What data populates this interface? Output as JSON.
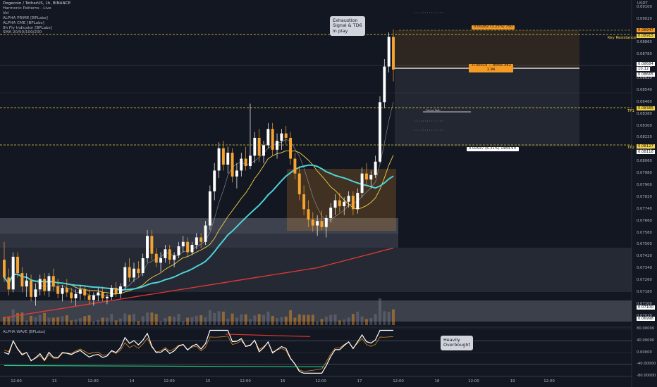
{
  "colors": {
    "background": "#131722",
    "bull": "#ffffff",
    "bear": "#f5a431",
    "teal": "#4fd2d8",
    "yellow": "#f6d245",
    "red": "#e53935",
    "orange": "#f59a23",
    "zone": "#9aa0ab",
    "dashed": "#e0d33a"
  },
  "legend": {
    "title": "Dogecoin / TetherUS, 1h, BINANCE",
    "lines": [
      "Harmonic Patterns - Live",
      "Vol",
      "ALPHA PRIME [BPLabs]",
      "ALPHA CME [BPLabs]",
      "9h Fly Indicator [BPLabs]",
      "SMA 20/50/100/200"
    ]
  },
  "annotations": {
    "exhaustion": "Exhaustion\nSignal & TD6\nin play",
    "overbought": "Heavily\nOverbought",
    "key_resistance": "Key Resistance",
    "tp1": "TP1",
    "tp2": "TP2",
    "target_box": "0.00282 (3.25%) 750",
    "entry_box": "-0.00019 − 8M56.482\n1.94",
    "stop_box": "0.00547 (6.31%) 1484.9×",
    "mid_label": "Future Path"
  },
  "price_axis": {
    "unit": "USDT",
    "ticks": [
      "0.09100",
      "0.09060",
      "0.09020",
      "0.08980",
      "0.08940",
      "0.08900",
      "0.08860",
      "0.08820",
      "0.08780",
      "0.08740",
      "0.08700",
      "0.08660",
      "0.08620",
      "0.08580",
      "0.08540",
      "0.08500",
      "0.08460",
      "0.08420",
      "0.08380",
      "0.08340",
      "0.08300",
      "0.08260",
      "0.08220",
      "0.08180",
      "0.08140",
      "0.08100",
      "0.08060",
      "0.08020",
      "0.07980",
      "0.07940",
      "0.07900",
      "0.07860",
      "0.07820",
      "0.07780",
      "0.07740",
      "0.07700",
      "0.07660",
      "0.07620",
      "0.07580",
      "0.07540",
      "0.07500",
      "0.07460",
      "0.07420",
      "0.07380",
      "0.07340",
      "0.07300",
      "0.07260",
      "0.07220",
      "0.07180",
      "0.07140",
      "0.07100",
      "0.07060",
      "0.07020",
      "0.06980"
    ],
    "badges": [
      {
        "text": "0.08947",
        "color": "#f59a23"
      },
      {
        "text": "0.08915",
        "color": "#f6d245"
      },
      {
        "text": "0.08684",
        "color": "#ffffff"
      },
      {
        "text": "10:12",
        "color": "#ffffff"
      },
      {
        "text": "0.08665",
        "color": "#ffffff"
      },
      {
        "text": "0.08385",
        "color": "#f6d245"
      },
      {
        "text": "0.08127",
        "color": "#f6d245"
      },
      {
        "text": "0.08118",
        "color": "#ffffff"
      },
      {
        "text": "0.07100",
        "color": "#ffffff"
      },
      {
        "text": "0.06998",
        "color": "#ffffff"
      }
    ]
  },
  "time_axis": [
    "12:00",
    "13",
    "12:00",
    "14",
    "12:00",
    "15",
    "12:00",
    "16",
    "12:00",
    "17",
    "12:00",
    "18",
    "12:00",
    "19",
    "12:00"
  ],
  "oscillator": {
    "name": "ALPHA WAVE [BPLabs]",
    "ticks": [
      "80.00000",
      "40.00000",
      "0.00000",
      "-40.00000",
      "-80.00000"
    ]
  },
  "chart_data": {
    "type": "candlestick",
    "title": "Dogecoin / TetherUS, 1h, BINANCE",
    "ylim": [
      0.0696,
      0.0911
    ],
    "levels": {
      "key_resistance": 0.08915,
      "tp1": 0.08385,
      "tp2": 0.08127,
      "current": 0.08684
    },
    "candles": [
      [
        0.074,
        0.0752,
        0.0725,
        0.0728
      ],
      [
        0.0728,
        0.0734,
        0.0716,
        0.072
      ],
      [
        0.072,
        0.0745,
        0.0718,
        0.0742
      ],
      [
        0.0742,
        0.0745,
        0.0728,
        0.0731
      ],
      [
        0.0731,
        0.0735,
        0.0718,
        0.0722
      ],
      [
        0.0722,
        0.0731,
        0.0715,
        0.0726
      ],
      [
        0.0726,
        0.073,
        0.0712,
        0.0715
      ],
      [
        0.0715,
        0.0724,
        0.0709,
        0.072
      ],
      [
        0.072,
        0.073,
        0.0716,
        0.0727
      ],
      [
        0.0727,
        0.0731,
        0.0716,
        0.0719
      ],
      [
        0.0719,
        0.0731,
        0.0715,
        0.0729
      ],
      [
        0.0729,
        0.0734,
        0.0719,
        0.0722
      ],
      [
        0.0722,
        0.0727,
        0.0714,
        0.0717
      ],
      [
        0.0717,
        0.0723,
        0.0712,
        0.0721
      ],
      [
        0.0721,
        0.0727,
        0.0715,
        0.0718
      ],
      [
        0.0718,
        0.0721,
        0.0711,
        0.0714
      ],
      [
        0.0714,
        0.072,
        0.0709,
        0.0717
      ],
      [
        0.0717,
        0.0723,
        0.0713,
        0.072
      ],
      [
        0.072,
        0.0722,
        0.0713,
        0.0716
      ],
      [
        0.0716,
        0.072,
        0.071,
        0.0713
      ],
      [
        0.0713,
        0.0718,
        0.0709,
        0.0716
      ],
      [
        0.0716,
        0.0721,
        0.0712,
        0.0718
      ],
      [
        0.0718,
        0.0722,
        0.0712,
        0.0714
      ],
      [
        0.0714,
        0.0717,
        0.071,
        0.0715
      ],
      [
        0.0715,
        0.0723,
        0.0713,
        0.0721
      ],
      [
        0.0721,
        0.0725,
        0.0715,
        0.0717
      ],
      [
        0.0717,
        0.0724,
        0.0714,
        0.0722
      ],
      [
        0.0722,
        0.0738,
        0.072,
        0.0735
      ],
      [
        0.0735,
        0.0741,
        0.0725,
        0.0728
      ],
      [
        0.0728,
        0.0738,
        0.0725,
        0.0734
      ],
      [
        0.0734,
        0.0739,
        0.0728,
        0.0731
      ],
      [
        0.0731,
        0.0744,
        0.0729,
        0.0741
      ],
      [
        0.0741,
        0.076,
        0.0738,
        0.0756
      ],
      [
        0.0756,
        0.076,
        0.074,
        0.0744
      ],
      [
        0.0744,
        0.0748,
        0.0735,
        0.0738
      ],
      [
        0.0738,
        0.0745,
        0.0732,
        0.0741
      ],
      [
        0.0741,
        0.075,
        0.0738,
        0.0747
      ],
      [
        0.0747,
        0.075,
        0.0737,
        0.074
      ],
      [
        0.074,
        0.0745,
        0.0735,
        0.0743
      ],
      [
        0.0743,
        0.0752,
        0.0741,
        0.0749
      ],
      [
        0.0749,
        0.0756,
        0.0745,
        0.0752
      ],
      [
        0.0752,
        0.0755,
        0.0742,
        0.0745
      ],
      [
        0.0745,
        0.0752,
        0.0743,
        0.075
      ],
      [
        0.075,
        0.0758,
        0.0747,
        0.0755
      ],
      [
        0.0755,
        0.0758,
        0.0748,
        0.0752
      ],
      [
        0.0752,
        0.0766,
        0.075,
        0.0763
      ],
      [
        0.0763,
        0.079,
        0.076,
        0.0786
      ],
      [
        0.0786,
        0.0805,
        0.078,
        0.08
      ],
      [
        0.08,
        0.0819,
        0.0795,
        0.0815
      ],
      [
        0.0815,
        0.082,
        0.08,
        0.0804
      ],
      [
        0.0804,
        0.0816,
        0.0798,
        0.0812
      ],
      [
        0.0812,
        0.0815,
        0.0792,
        0.0796
      ],
      [
        0.0796,
        0.0805,
        0.0788,
        0.08
      ],
      [
        0.08,
        0.0812,
        0.0796,
        0.0808
      ],
      [
        0.0808,
        0.0816,
        0.08,
        0.0803
      ],
      [
        0.0803,
        0.0845,
        0.0801,
        0.081
      ],
      [
        0.081,
        0.0826,
        0.0805,
        0.0822
      ],
      [
        0.0822,
        0.0828,
        0.0806,
        0.081
      ],
      [
        0.081,
        0.082,
        0.0805,
        0.0817
      ],
      [
        0.0817,
        0.0832,
        0.0815,
        0.0828
      ],
      [
        0.0828,
        0.0832,
        0.081,
        0.0814
      ],
      [
        0.0814,
        0.0825,
        0.0808,
        0.082
      ],
      [
        0.082,
        0.0828,
        0.0814,
        0.0825
      ],
      [
        0.0825,
        0.083,
        0.0818,
        0.0822
      ],
      [
        0.0822,
        0.0826,
        0.0804,
        0.0808
      ],
      [
        0.0808,
        0.0812,
        0.0794,
        0.0798
      ],
      [
        0.0798,
        0.0803,
        0.078,
        0.0784
      ],
      [
        0.0784,
        0.079,
        0.077,
        0.0774
      ],
      [
        0.0774,
        0.078,
        0.0762,
        0.0767
      ],
      [
        0.0767,
        0.0772,
        0.0759,
        0.0763
      ],
      [
        0.0763,
        0.077,
        0.0756,
        0.0766
      ],
      [
        0.0766,
        0.0773,
        0.076,
        0.0762
      ],
      [
        0.0762,
        0.077,
        0.0755,
        0.0768
      ],
      [
        0.0768,
        0.0778,
        0.0765,
        0.0775
      ],
      [
        0.0775,
        0.0784,
        0.077,
        0.078
      ],
      [
        0.078,
        0.0785,
        0.0772,
        0.0776
      ],
      [
        0.0776,
        0.0782,
        0.077,
        0.0779
      ],
      [
        0.0779,
        0.0786,
        0.0775,
        0.0783
      ],
      [
        0.0783,
        0.0786,
        0.077,
        0.0774
      ],
      [
        0.0774,
        0.0788,
        0.0771,
        0.0785
      ],
      [
        0.0785,
        0.0802,
        0.0782,
        0.0798
      ],
      [
        0.0798,
        0.0805,
        0.079,
        0.0794
      ],
      [
        0.0794,
        0.08,
        0.0788,
        0.0797
      ],
      [
        0.0797,
        0.081,
        0.0795,
        0.0806
      ],
      [
        0.0806,
        0.085,
        0.0805,
        0.0846
      ],
      [
        0.0846,
        0.0875,
        0.0842,
        0.087
      ],
      [
        0.087,
        0.0893,
        0.0866,
        0.089
      ],
      [
        0.089,
        0.0895,
        0.086,
        0.0868
      ]
    ]
  }
}
